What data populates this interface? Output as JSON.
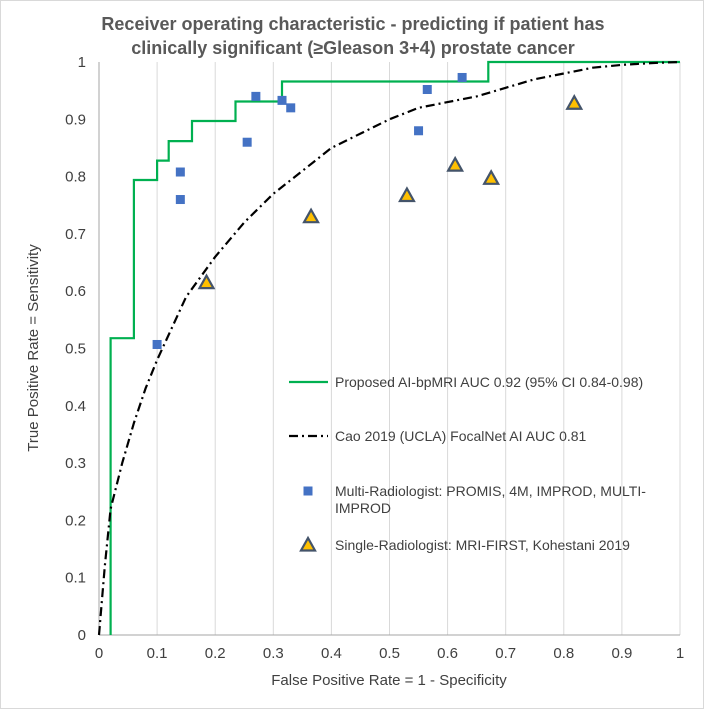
{
  "chart_data": {
    "type": "scatter",
    "title": [
      "Receiver operating characteristic - predicting if patient has",
      "clinically significant (≥Gleason 3+4) prostate cancer"
    ],
    "xlabel": "False Positive Rate = 1 - Specificity",
    "ylabel": "True Positive Rate = Sensitivity",
    "xlim": [
      0,
      1
    ],
    "ylim": [
      0,
      1
    ],
    "x_ticks": [
      "0",
      "0.1",
      "0.2",
      "0.3",
      "0.4",
      "0.5",
      "0.6",
      "0.7",
      "0.8",
      "0.9",
      "1"
    ],
    "y_ticks": [
      "0",
      "0.1",
      "0.2",
      "0.3",
      "0.4",
      "0.5",
      "0.6",
      "0.7",
      "0.8",
      "0.9",
      "1"
    ],
    "grid": "vertical",
    "legend_position": "inside-right",
    "series": [
      {
        "name": "Proposed AI-bpMRI AUC 0.92 (95% CI 0.84-0.98)",
        "kind": "step-line",
        "color": "#00b050",
        "x": [
          0.02,
          0.02,
          0.06,
          0.06,
          0.1,
          0.1,
          0.12,
          0.12,
          0.16,
          0.16,
          0.235,
          0.235,
          0.315,
          0.315,
          0.67,
          0.67,
          1.0
        ],
        "y": [
          0.0,
          0.518,
          0.518,
          0.794,
          0.794,
          0.828,
          0.828,
          0.862,
          0.862,
          0.897,
          0.897,
          0.931,
          0.931,
          0.966,
          0.966,
          1.0,
          1.0
        ]
      },
      {
        "name": "Cao 2019 (UCLA) FocalNet AI AUC 0.81",
        "kind": "dash-dot-line",
        "color": "#000000",
        "x": [
          0.0,
          0.01,
          0.02,
          0.04,
          0.06,
          0.08,
          0.1,
          0.15,
          0.2,
          0.25,
          0.3,
          0.35,
          0.4,
          0.45,
          0.5,
          0.55,
          0.6,
          0.65,
          0.7,
          0.75,
          0.8,
          0.85,
          0.9,
          0.95,
          1.0
        ],
        "y": [
          0.0,
          0.12,
          0.22,
          0.3,
          0.37,
          0.43,
          0.48,
          0.59,
          0.66,
          0.72,
          0.77,
          0.81,
          0.85,
          0.875,
          0.9,
          0.92,
          0.93,
          0.94,
          0.955,
          0.97,
          0.98,
          0.99,
          0.995,
          0.998,
          1.0
        ]
      },
      {
        "name": "Multi-Radiologist: PROMIS, 4M, IMPROD, MULTI-IMPROD",
        "kind": "square-markers",
        "color": "#4472c4",
        "x": [
          0.1,
          0.14,
          0.14,
          0.255,
          0.27,
          0.315,
          0.33,
          0.55,
          0.565,
          0.625
        ],
        "y": [
          0.507,
          0.76,
          0.808,
          0.86,
          0.94,
          0.933,
          0.92,
          0.88,
          0.952,
          0.973
        ]
      },
      {
        "name": "Single-Radiologist: MRI-FIRST, Kohestani 2019",
        "kind": "triangle-markers",
        "color": "#ffc000",
        "edge": "#44546a",
        "x": [
          0.185,
          0.365,
          0.53,
          0.613,
          0.675,
          0.818
        ],
        "y": [
          0.615,
          0.73,
          0.767,
          0.82,
          0.797,
          0.928
        ]
      }
    ],
    "legend": [
      {
        "lines": [
          "Proposed AI-bpMRI AUC 0.92 (95% CI 0.84-0.98)"
        ]
      },
      {
        "lines": [
          "Cao 2019 (UCLA) FocalNet AI AUC 0.81"
        ]
      },
      {
        "lines": [
          "Multi-Radiologist: PROMIS, 4M, IMPROD, MULTI-",
          "IMPROD"
        ]
      },
      {
        "lines": [
          "Single-Radiologist: MRI-FIRST, Kohestani 2019"
        ]
      }
    ]
  }
}
